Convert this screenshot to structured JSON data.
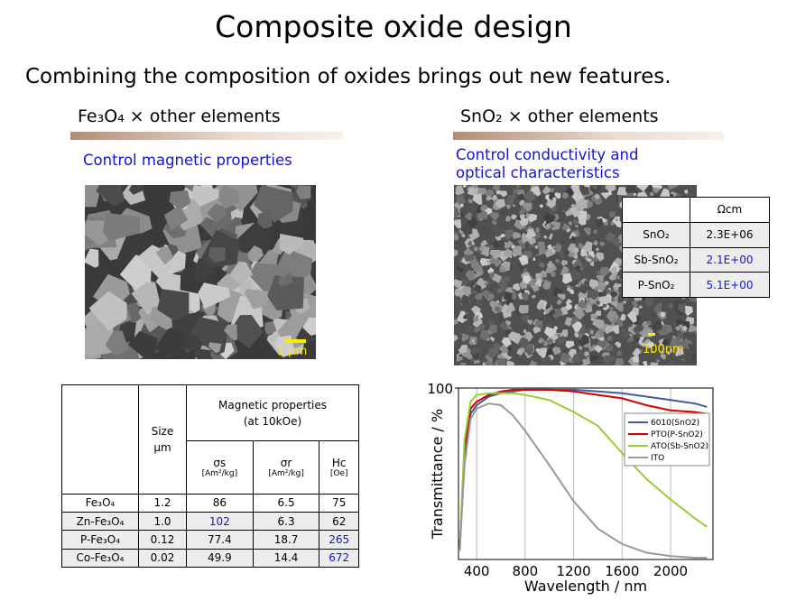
{
  "header": {
    "title": "Composite oxide design",
    "subtitle": "Combining the composition of oxides brings out new features."
  },
  "left": {
    "heading": "Fe₃O₄ × other elements",
    "caption": "Control magnetic properties",
    "scale_label": "1 μm",
    "table": {
      "size_header": [
        "Size",
        "μm"
      ],
      "group_header": [
        "Magnetic properties",
        "(at 10kOe)"
      ],
      "columns": [
        [
          "σs",
          "[Am²/kg]"
        ],
        [
          "σr",
          "[Am²/kg]"
        ],
        [
          "Hc",
          "[Oe]"
        ]
      ],
      "rows": [
        [
          "Fe₃O₄",
          "1.2",
          "86",
          "6.5",
          "75"
        ],
        [
          "Zn-Fe₃O₄",
          "1.0",
          "102",
          "6.3",
          "62"
        ],
        [
          "P-Fe₃O₄",
          "0.12",
          "77.4",
          "18.7",
          "265"
        ],
        [
          "Co-Fe₃O₄",
          "0.02",
          "49.9",
          "14.4",
          "672"
        ]
      ]
    }
  },
  "right": {
    "heading": "SnO₂ × other elements",
    "caption": [
      "Control conductivity and",
      "optical characteristics"
    ],
    "scale_label": "100nm",
    "table": {
      "header": "Ωcm",
      "rows": [
        [
          "SnO₂",
          "2.3E+06"
        ],
        [
          "Sb-SnO₂",
          "2.1E+00"
        ],
        [
          "P-SnO₂",
          "5.1E+00"
        ]
      ]
    }
  },
  "chart_data": {
    "type": "line",
    "x_label": "Wavelength / nm",
    "y_label": "Transmittance / %",
    "x": [
      260,
      300,
      350,
      400,
      500,
      600,
      700,
      800,
      1000,
      1200,
      1400,
      1600,
      1800,
      2000,
      2200,
      2300
    ],
    "series": [
      {
        "name": "6010(SnO2)",
        "color": "#3b5f9a",
        "values": [
          5,
          60,
          85,
          90,
          95,
          97,
          98,
          99,
          99,
          99,
          98,
          97,
          95,
          93,
          91,
          89
        ]
      },
      {
        "name": "PTO(P-SnO2)",
        "color": "#d40000",
        "values": [
          5,
          65,
          88,
          92,
          96,
          98,
          99,
          99,
          99,
          98,
          96,
          94,
          90,
          87,
          86,
          85
        ]
      },
      {
        "name": "ATO(Sb-SnO2)",
        "color": "#9acd32",
        "values": [
          5,
          70,
          92,
          96,
          97,
          97,
          97,
          96,
          93,
          86,
          78,
          62,
          47,
          35,
          24,
          19
        ]
      },
      {
        "name": "ITO",
        "color": "#999999",
        "values": [
          5,
          55,
          82,
          88,
          91,
          90,
          84,
          75,
          55,
          34,
          18,
          9,
          4,
          2,
          1,
          1
        ]
      }
    ],
    "xlim": [
      250,
      2350
    ],
    "ylim": [
      0,
      100
    ],
    "xticks": [
      400,
      800,
      1200,
      1600,
      2000
    ],
    "yticks": [
      100
    ],
    "grid": true,
    "legend": "upper right"
  }
}
